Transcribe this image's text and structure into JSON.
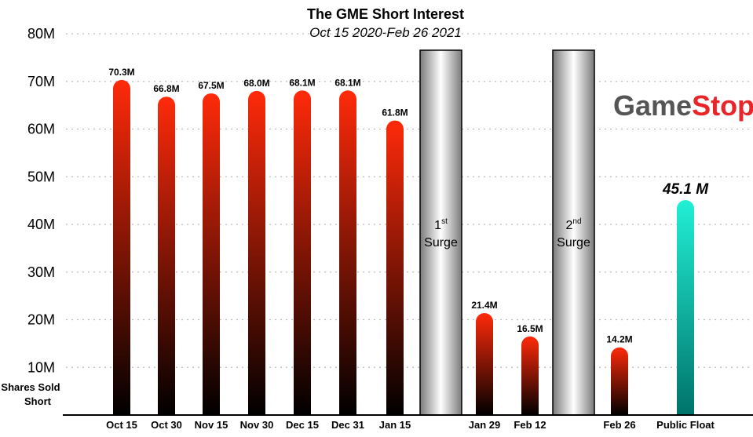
{
  "chart_data": {
    "type": "bar",
    "title": "The GME Short Interest",
    "subtitle": "Oct 15 2020-Feb 26 2021",
    "ylabel_lines": [
      "Shares Sold",
      "Short"
    ],
    "ylim": [
      0,
      80
    ],
    "yticks": [
      "10M",
      "20M",
      "30M",
      "40M",
      "50M",
      "60M",
      "70M",
      "80M"
    ],
    "grid": true,
    "bars": [
      {
        "category": "Oct 15",
        "value": 70.3,
        "label": "70.3M",
        "kind": "short"
      },
      {
        "category": "Oct 30",
        "value": 66.8,
        "label": "66.8M",
        "kind": "short"
      },
      {
        "category": "Nov 15",
        "value": 67.5,
        "label": "67.5M",
        "kind": "short"
      },
      {
        "category": "Nov 30",
        "value": 68.0,
        "label": "68.0M",
        "kind": "short"
      },
      {
        "category": "Dec 15",
        "value": 68.1,
        "label": "68.1M",
        "kind": "short"
      },
      {
        "category": "Dec 31",
        "value": 68.1,
        "label": "68.1M",
        "kind": "short"
      },
      {
        "category": "Jan 15",
        "value": 61.8,
        "label": "61.8M",
        "kind": "short"
      },
      {
        "category": "Jan 29",
        "value": 21.4,
        "label": "21.4M",
        "kind": "short"
      },
      {
        "category": "Feb 12",
        "value": 16.5,
        "label": "16.5M",
        "kind": "short"
      },
      {
        "category": "Feb 26",
        "value": 14.2,
        "label": "14.2M",
        "kind": "short"
      },
      {
        "category": "Public Float",
        "value": 45.1,
        "label": "45.1 M",
        "kind": "float"
      }
    ],
    "surges": [
      {
        "after": "Jan 15",
        "number": "1",
        "suffix": "st",
        "word": "Surge"
      },
      {
        "after": "Feb 12",
        "number": "2",
        "suffix": "nd",
        "word": "Surge"
      }
    ]
  },
  "logo": {
    "part1": "Game",
    "part2": "Stop"
  },
  "colors": {
    "short_top": "#ff2a0a",
    "short_bottom": "#000000",
    "float_top": "#22efd6",
    "float_bottom": "#00736a",
    "surge_light": "#ffffff",
    "surge_dark": "#7a7a7a",
    "axis": "#000000",
    "grid": "#bbbbbb"
  }
}
